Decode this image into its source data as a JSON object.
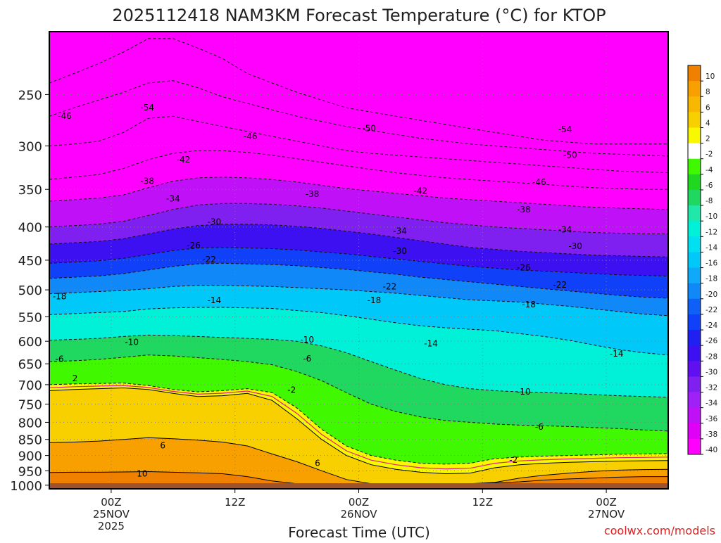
{
  "chart_data": {
    "type": "heatmap",
    "title": "2025112418 NAM3KM Forecast Temperature (°C) for KTOP",
    "xlabel": "Forecast Time (UTC)",
    "ylabel": "",
    "watermark": "coolwx.com/models",
    "x_ticks": [
      {
        "hour": 6,
        "line1": "00Z",
        "line2": "25NOV",
        "line3": "2025"
      },
      {
        "hour": 18,
        "line1": "12Z",
        "line2": "",
        "line3": ""
      },
      {
        "hour": 30,
        "line1": "00Z",
        "line2": "26NOV",
        "line3": ""
      },
      {
        "hour": 42,
        "line1": "12Z",
        "line2": "",
        "line3": ""
      },
      {
        "hour": 54,
        "line1": "00Z",
        "line2": "27NOV",
        "line3": ""
      }
    ],
    "xlim_hours": [
      0,
      60
    ],
    "y_ticks": [
      250,
      300,
      350,
      400,
      450,
      500,
      550,
      600,
      650,
      700,
      750,
      800,
      850,
      900,
      950,
      1000
    ],
    "ylim_hpa": [
      200,
      1013
    ],
    "surface_pressure_hpa": 993,
    "colorbar": {
      "labels": [
        "10",
        "8",
        "6",
        "4",
        "2",
        "-2",
        "-4",
        "-6",
        "-8",
        "-10",
        "-12",
        "-14",
        "-16",
        "-18",
        "-20",
        "-22",
        "-24",
        "-26",
        "-28",
        "-30",
        "-32",
        "-34",
        "-36",
        "-38",
        "-40"
      ],
      "colors": [
        "#f08000",
        "#f8a000",
        "#f8b800",
        "#f8d000",
        "#f8f800",
        "#ffffff",
        "#40f800",
        "#20d820",
        "#20d860",
        "#20e8a8",
        "#00f0d8",
        "#00e0f0",
        "#00c8f8",
        "#10a8f8",
        "#1088f8",
        "#1060f8",
        "#1040f8",
        "#2020f0",
        "#3c10f0",
        "#6010f0",
        "#8020f0",
        "#a020f8",
        "#c010f8",
        "#e000f8",
        "#ff00ff"
      ]
    },
    "isotherms": [
      {
        "temp": 10,
        "p": [
          956,
          955,
          955,
          954,
          953,
          955,
          957,
          960,
          970,
          985,
          995,
          995,
          995,
          995,
          995,
          995,
          995,
          995,
          992,
          988,
          982,
          978,
          975,
          972,
          970,
          970
        ]
      },
      {
        "temp": 6,
        "p": [
          860,
          858,
          855,
          850,
          845,
          848,
          852,
          858,
          870,
          895,
          920,
          950,
          980,
          995,
          995,
          995,
          995,
          995,
          990,
          975,
          965,
          958,
          952,
          948,
          946,
          945
        ]
      },
      {
        "temp": 2,
        "p": [
          715,
          712,
          710,
          708,
          712,
          722,
          730,
          728,
          722,
          740,
          790,
          850,
          900,
          930,
          945,
          955,
          960,
          958,
          940,
          930,
          925,
          922,
          920,
          918,
          917,
          916
        ]
      },
      {
        "temp": -2,
        "p": [
          700,
          698,
          697,
          696,
          702,
          712,
          718,
          715,
          710,
          720,
          760,
          820,
          870,
          900,
          915,
          925,
          928,
          925,
          910,
          905,
          902,
          900,
          898,
          896,
          895,
          894
        ]
      },
      {
        "temp": -6,
        "p": [
          645,
          643,
          640,
          635,
          630,
          632,
          636,
          640,
          645,
          652,
          668,
          690,
          720,
          750,
          770,
          785,
          795,
          800,
          805,
          808,
          810,
          812,
          815,
          818,
          822,
          825
        ]
      },
      {
        "temp": -10,
        "p": [
          598,
          596,
          594,
          590,
          587,
          588,
          590,
          592,
          594,
          596,
          600,
          610,
          625,
          645,
          665,
          685,
          700,
          710,
          715,
          718,
          720,
          722,
          725,
          728,
          730,
          732
        ]
      },
      {
        "temp": -14,
        "p": [
          546,
          544,
          542,
          540,
          535,
          533,
          532,
          532,
          533,
          534,
          538,
          542,
          548,
          555,
          562,
          568,
          572,
          575,
          578,
          584,
          590,
          598,
          608,
          618,
          625,
          630
        ]
      },
      {
        "temp": -18,
        "p": [
          507,
          505,
          503,
          501,
          498,
          494,
          492,
          492,
          493,
          494,
          496,
          498,
          500,
          503,
          506,
          510,
          514,
          518,
          520,
          522,
          526,
          530,
          535,
          540,
          545,
          548
        ]
      },
      {
        "temp": -22,
        "p": [
          480,
          478,
          476,
          472,
          466,
          460,
          456,
          455,
          456,
          457,
          459,
          462,
          465,
          469,
          473,
          478,
          482,
          486,
          490,
          494,
          498,
          502,
          506,
          510,
          513,
          515
        ]
      },
      {
        "temp": -26,
        "p": [
          455,
          453,
          451,
          447,
          441,
          435,
          431,
          430,
          431,
          432,
          434,
          437,
          440,
          444,
          448,
          452,
          456,
          460,
          463,
          466,
          468,
          470,
          472,
          474,
          475,
          476
        ]
      },
      {
        "temp": -30,
        "p": [
          425,
          423,
          421,
          417,
          410,
          403,
          398,
          396,
          396,
          397,
          399,
          402,
          406,
          410,
          415,
          420,
          425,
          430,
          433,
          436,
          438,
          440,
          442,
          443,
          444,
          445
        ]
      },
      {
        "temp": -34,
        "p": [
          400,
          398,
          396,
          392,
          384,
          376,
          370,
          368,
          368,
          369,
          371,
          374,
          378,
          382,
          386,
          390,
          394,
          397,
          400,
          402,
          404,
          406,
          408,
          409,
          410,
          410
        ]
      },
      {
        "temp": -38,
        "p": [
          365,
          363,
          361,
          357,
          348,
          340,
          336,
          335,
          336,
          338,
          341,
          345,
          349,
          352,
          355,
          358,
          361,
          363,
          365,
          367,
          369,
          371,
          373,
          374,
          375,
          376
        ]
      },
      {
        "temp": -42,
        "p": [
          338,
          335,
          332,
          325,
          315,
          308,
          305,
          305,
          307,
          310,
          314,
          318,
          322,
          326,
          330,
          333,
          336,
          338,
          340,
          342,
          344,
          346,
          348,
          349,
          350,
          350
        ]
      },
      {
        "temp": -46,
        "p": [
          300,
          298,
          295,
          286,
          272,
          270,
          275,
          280,
          285,
          290,
          295,
          300,
          305,
          308,
          310,
          312,
          314,
          316,
          318,
          320,
          322,
          324,
          326,
          328,
          329,
          330
        ]
      },
      {
        "temp": -50,
        "p": [
          270,
          262,
          255,
          248,
          240,
          238,
          244,
          252,
          258,
          264,
          270,
          275,
          280,
          284,
          288,
          292,
          295,
          298,
          300,
          302,
          304,
          306,
          308,
          309,
          310,
          311
        ]
      },
      {
        "temp": -54,
        "p": [
          240,
          232,
          224,
          215,
          205,
          205,
          212,
          220,
          232,
          240,
          248,
          255,
          262,
          266,
          270,
          274,
          278,
          282,
          286,
          290,
          294,
          296,
          298,
          298,
          298,
          298
        ]
      }
    ],
    "contour_labels": [
      {
        "text": "-54",
        "hour": 9.5,
        "p": 262
      },
      {
        "text": "-46",
        "hour": 1.5,
        "p": 270
      },
      {
        "text": "-50",
        "hour": 31,
        "p": 282
      },
      {
        "text": "-54",
        "hour": 50,
        "p": 283
      },
      {
        "text": "-46",
        "hour": 19.5,
        "p": 290
      },
      {
        "text": "-42",
        "hour": 13,
        "p": 315
      },
      {
        "text": "-50",
        "hour": 50.5,
        "p": 310
      },
      {
        "text": "-38",
        "hour": 9.5,
        "p": 340
      },
      {
        "text": "-46",
        "hour": 47.5,
        "p": 341
      },
      {
        "text": "-42",
        "hour": 36,
        "p": 352
      },
      {
        "text": "-34",
        "hour": 12,
        "p": 362
      },
      {
        "text": "-38",
        "hour": 25.5,
        "p": 356
      },
      {
        "text": "-38",
        "hour": 46,
        "p": 376
      },
      {
        "text": "-30",
        "hour": 16,
        "p": 393
      },
      {
        "text": "-34",
        "hour": 34,
        "p": 406
      },
      {
        "text": "-34",
        "hour": 50,
        "p": 404
      },
      {
        "text": "-26",
        "hour": 14,
        "p": 427
      },
      {
        "text": "-30",
        "hour": 34,
        "p": 436
      },
      {
        "text": "-30",
        "hour": 51,
        "p": 428
      },
      {
        "text": "-22",
        "hour": 15.5,
        "p": 449
      },
      {
        "text": "-26",
        "hour": 46,
        "p": 462
      },
      {
        "text": "-18",
        "hour": 1,
        "p": 512
      },
      {
        "text": "-22",
        "hour": 33,
        "p": 494
      },
      {
        "text": "-22",
        "hour": 49.5,
        "p": 491
      },
      {
        "text": "-14",
        "hour": 16,
        "p": 519
      },
      {
        "text": "-18",
        "hour": 31.5,
        "p": 519
      },
      {
        "text": "-18",
        "hour": 46.5,
        "p": 527
      },
      {
        "text": "-10",
        "hour": 8,
        "p": 602
      },
      {
        "text": "-10",
        "hour": 25,
        "p": 597
      },
      {
        "text": "-14",
        "hour": 37,
        "p": 605
      },
      {
        "text": "-14",
        "hour": 55,
        "p": 627
      },
      {
        "text": "-6",
        "hour": 1,
        "p": 639
      },
      {
        "text": "-6",
        "hour": 25,
        "p": 638
      },
      {
        "text": "-2",
        "hour": 23.5,
        "p": 713
      },
      {
        "text": "2",
        "hour": 2.5,
        "p": 685
      },
      {
        "text": "-10",
        "hour": 46,
        "p": 718
      },
      {
        "text": "-6",
        "hour": 47.5,
        "p": 813
      },
      {
        "text": "6",
        "hour": 11,
        "p": 869
      },
      {
        "text": "-2",
        "hour": 45,
        "p": 915
      },
      {
        "text": "6",
        "hour": 26,
        "p": 925
      },
      {
        "text": "10",
        "hour": 9,
        "p": 960
      }
    ]
  }
}
